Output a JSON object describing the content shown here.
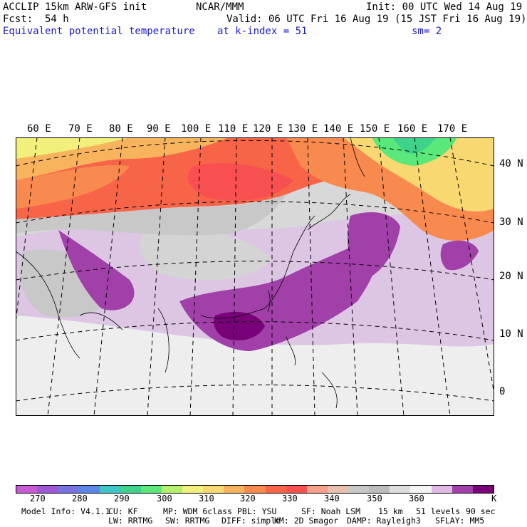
{
  "header": {
    "model": "ACCLIP 15km ARW-GFS init",
    "center": "NCAR/MMM",
    "init": "Init: 00 UTC Wed 14 Aug 19",
    "fcst_label": "Fcst:",
    "fcst_value": "54 h",
    "valid": "Valid: 06 UTC Fri 16 Aug 19 (15 JST Fri 16 Aug 19)",
    "field": "Equivalent potential temperature",
    "level": "at k-index =  51",
    "smooth": "sm= 2"
  },
  "map": {
    "lon_labels": [
      "60 E",
      "70 E",
      "80 E",
      "90 E",
      "100 E",
      "110 E",
      "120 E",
      "130 E",
      "140 E",
      "150 E",
      "160 E",
      "170 E"
    ],
    "lat_labels": [
      "40 N",
      "30 N",
      "20 N",
      "10 N",
      "0"
    ]
  },
  "colorbar": {
    "colors": [
      "#c85ad2",
      "#9e58d6",
      "#7a72e0",
      "#5a86e8",
      "#3cc6c6",
      "#3ed28a",
      "#5ae87a",
      "#b4f06e",
      "#f0f07a",
      "#f8d870",
      "#f8b45c",
      "#f88a50",
      "#f86448",
      "#f85050",
      "#f8a08a",
      "#e8c0b0",
      "#c8c8c8",
      "#bcbcbc",
      "#dedede",
      "#f4f4f4",
      "#e0b8e4",
      "#a040a8",
      "#780078"
    ],
    "tick_labels": [
      "270",
      "280",
      "290",
      "300",
      "310",
      "320",
      "330",
      "340",
      "350",
      "360"
    ],
    "unit": "K"
  },
  "footer": {
    "line1": [
      "Model Info: V4.1.1",
      "CU: KF",
      "MP: WDM 6class",
      "PBL: YSU",
      "SF: Noah LSM",
      "15 km",
      "51 levels",
      "90 sec"
    ],
    "line2": [
      "LW: RRTMG",
      "SW: RRTMG",
      "DIFF: simple",
      "KM: 2D Smagor",
      "DAMP: Rayleigh3",
      "SFLAY: MM5"
    ]
  }
}
